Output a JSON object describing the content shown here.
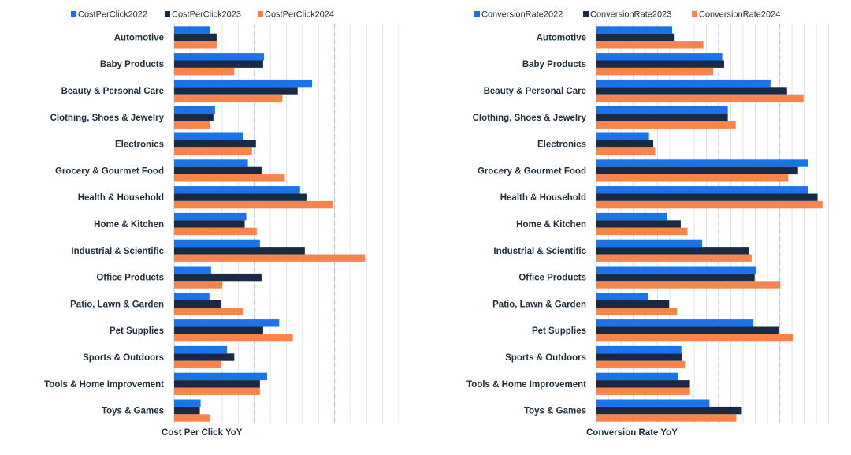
{
  "colors": {
    "c2022": "#1a73e8",
    "c2023": "#1b2a44",
    "c2024": "#f7844b",
    "grid_major": "#a9c8ef",
    "grid_minor": "#e3e3e3",
    "text": "#1f2d3d"
  },
  "chart_data": [
    {
      "type": "bar",
      "orientation": "horizontal",
      "xlabel": "Cost Per Click YoY",
      "categories": [
        "Automotive",
        "Baby Products",
        "Beauty & Personal Care",
        "Clothing, Shoes & Jewelry",
        "Electronics",
        "Grocery & Gourmet Food",
        "Health & Household",
        "Home & Kitchen",
        "Industrial & Scientific",
        "Office Products",
        "Patio, Lawn & Garden",
        "Pet Supplies",
        "Sports & Outdoors",
        "Tools & Home Improvement",
        "Toys & Games"
      ],
      "series": [
        {
          "name": "CostPerClick2022",
          "values": [
            0.45,
            1.12,
            1.72,
            0.51,
            0.86,
            0.92,
            1.57,
            0.9,
            1.07,
            0.46,
            0.44,
            1.31,
            0.66,
            1.16,
            0.33
          ]
        },
        {
          "name": "CostPerClick2023",
          "values": [
            0.53,
            1.11,
            1.54,
            0.49,
            1.02,
            1.09,
            1.65,
            0.88,
            1.63,
            1.09,
            0.58,
            1.11,
            0.75,
            1.07,
            0.32
          ]
        },
        {
          "name": "CostPerClick2024",
          "values": [
            0.53,
            0.75,
            1.35,
            0.45,
            0.97,
            1.38,
            1.98,
            1.03,
            2.38,
            0.6,
            0.86,
            1.48,
            0.58,
            1.07,
            0.45
          ]
        }
      ],
      "xlim": [
        0,
        2.84
      ],
      "major_grid": [
        1,
        2
      ],
      "minor_step": 0.2,
      "grid": true,
      "legend": "top-left"
    },
    {
      "type": "bar",
      "orientation": "horizontal",
      "xlabel": "Conversion Rate YoY",
      "categories": [
        "Automotive",
        "Baby Products",
        "Beauty & Personal Care",
        "Clothing, Shoes & Jewelry",
        "Electronics",
        "Grocery & Gourmet Food",
        "Health & Household",
        "Home & Kitchen",
        "Industrial & Scientific",
        "Office Products",
        "Patio, Lawn & Garden",
        "Pet Supplies",
        "Sports & Outdoors",
        "Tools & Home Improvement",
        "Toys & Games"
      ],
      "series": [
        {
          "name": "ConversionRate2022",
          "values": [
            0.124,
            0.206,
            0.285,
            0.215,
            0.086,
            0.347,
            0.346,
            0.116,
            0.173,
            0.262,
            0.085,
            0.257,
            0.139,
            0.134,
            0.185
          ]
        },
        {
          "name": "ConversionRate2023",
          "values": [
            0.128,
            0.209,
            0.312,
            0.215,
            0.093,
            0.33,
            0.362,
            0.138,
            0.25,
            0.259,
            0.119,
            0.298,
            0.14,
            0.153,
            0.238
          ]
        },
        {
          "name": "ConversionRate2024",
          "values": [
            0.175,
            0.191,
            0.339,
            0.228,
            0.096,
            0.314,
            0.37,
            0.149,
            0.254,
            0.301,
            0.132,
            0.322,
            0.145,
            0.153,
            0.229
          ]
        }
      ],
      "xlim": [
        0,
        0.4
      ],
      "major_grid": [
        0.2,
        0.3
      ],
      "minor_step": 0.02,
      "grid": true,
      "legend": "top-left"
    }
  ]
}
